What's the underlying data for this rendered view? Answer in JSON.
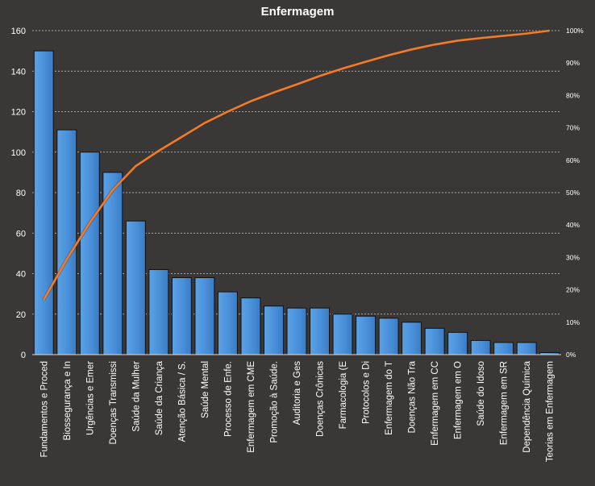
{
  "chart_data": {
    "type": "bar",
    "title": "Enfermagem",
    "categories": [
      "Fundamentos e Proced",
      "Biossegurança e In",
      "Urgências e Emer",
      "Doenças Transmissi",
      "Saúde da Mulher",
      "Saúde da Criança",
      "Atenção Básica / S.",
      "Saúde Mental",
      "Processo de Enfe.",
      "Enfermagem em CME",
      "Promoção à Saúde.",
      "Auditoria e Ges",
      "Doenças Crônicas",
      "Farmacologia (E",
      "Protocolos e Di",
      "Enfermagem do T",
      "Doenças Não Tra",
      "Enfermagem em CC",
      "Enfermagem em O",
      "Saúde do Idoso",
      "Enfermagem em SR",
      "Dependência Química",
      "Teorias em Enfermagem"
    ],
    "series": [
      {
        "type": "bar",
        "axis": "left",
        "color": "#4a90d9",
        "values": [
          150,
          111,
          100,
          90,
          66,
          42,
          38,
          38,
          31,
          28,
          24,
          23,
          23,
          20,
          19,
          18,
          16,
          13,
          11,
          7,
          6,
          6,
          1
        ]
      },
      {
        "type": "line",
        "axis": "right",
        "color": "#ed7d31",
        "values": [
          16.9,
          29.4,
          40.7,
          50.8,
          58.2,
          62.9,
          67.2,
          71.5,
          75.0,
          78.2,
          80.9,
          83.4,
          86.0,
          88.3,
          90.4,
          92.4,
          94.2,
          95.7,
          96.9,
          97.7,
          98.4,
          99.1,
          100
        ]
      }
    ],
    "y_left": {
      "ylim": [
        0,
        160
      ],
      "ticks": [
        "0",
        "20",
        "40",
        "60",
        "80",
        "100",
        "120",
        "140",
        "160"
      ]
    },
    "y_right": {
      "ylim": [
        0,
        100
      ],
      "ticks": [
        "0%",
        "10%",
        "20%",
        "30%",
        "40%",
        "50%",
        "60%",
        "70%",
        "80%",
        "90%",
        "100%"
      ]
    },
    "grid": true,
    "legend": "none"
  }
}
